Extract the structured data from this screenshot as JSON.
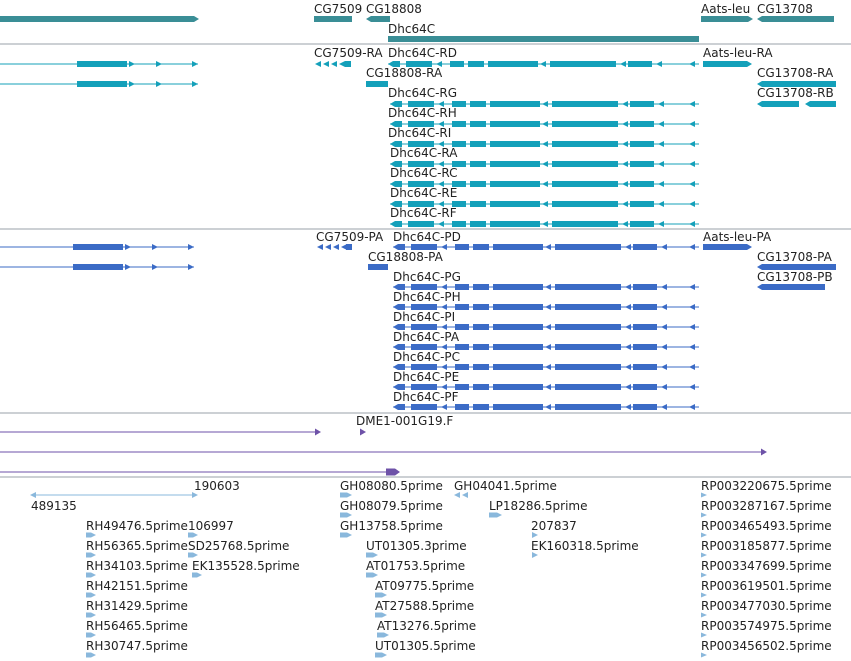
{
  "colors": {
    "gene": "#3a8e96",
    "transcript": "#14a0ba",
    "protein": "#3b6bc6",
    "alignment": "#6e52a8",
    "est": "#8ab8dc",
    "separator": "#9aa0aa",
    "text": "#222222"
  },
  "tracks": {
    "genes": {
      "labels": [
        "CG7509",
        "CG18808",
        "Dhc64C",
        "Aats-leu",
        "CG13708"
      ]
    },
    "transcripts": {
      "labels": [
        "CG7509-RA",
        "Dhc64C-RD",
        "Aats-leu-RA",
        "CG18808-RA",
        "CG13708-RA",
        "Dhc64C-RG",
        "CG13708-RB",
        "Dhc64C-RH",
        "Dhc64C-RI",
        "Dhc64C-RA",
        "Dhc64C-RC",
        "Dhc64C-RE",
        "Dhc64C-RF"
      ]
    },
    "proteins": {
      "labels": [
        "CG7509-PA",
        "Dhc64C-PD",
        "Aats-leu-PA",
        "CG18808-PA",
        "CG13708-PA",
        "Dhc64C-PG",
        "CG13708-PB",
        "Dhc64C-PH",
        "Dhc64C-PI",
        "Dhc64C-PA",
        "Dhc64C-PC",
        "Dhc64C-PE",
        "Dhc64C-PF"
      ]
    },
    "alignments": {
      "labels": [
        "DME1-001G19.F"
      ]
    },
    "ests": {
      "labels": [
        "190603",
        "GH08080.5prime",
        "GH04041.5prime",
        "RP003220675.5prime",
        "489135",
        "GH08079.5prime",
        "LP18286.5prime",
        "RP003287167.5prime",
        "RH49476.5prime",
        "106997",
        "GH13758.5prime",
        "207837",
        "RP003465493.5prime",
        "RH56365.5prime",
        "SD25768.5prime",
        "UT01305.3prime",
        "EK160318.5prime",
        "RP003185877.5prime",
        "RH34103.5prime",
        "EK135528.5prime",
        "AT01753.5prime",
        "RP003347699.5prime",
        "RH42151.5prime",
        "AT09775.5prime",
        "RP003619501.5prime",
        "RH31429.5prime",
        "AT27588.5prime",
        "RP003477030.5prime",
        "RH56465.5prime",
        "AT13276.5prime",
        "RP003574975.5prime",
        "RH30747.5prime",
        "UT01305.5prime",
        "RP003456502.5prime"
      ]
    }
  }
}
